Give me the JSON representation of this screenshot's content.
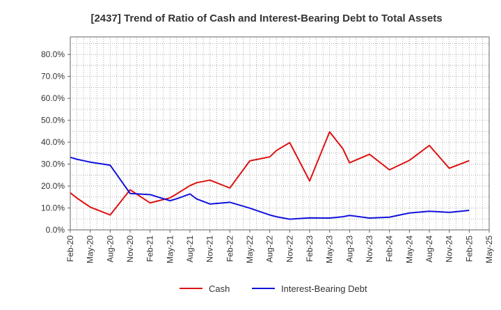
{
  "chart_data": {
    "type": "line",
    "title": "[2437]  Trend of Ratio of Cash and Interest-Bearing Debt to Total Assets",
    "xlabel": "",
    "ylabel": "",
    "ylim": [
      0,
      0.88
    ],
    "y_ticks": [
      "0.0%",
      "10.0%",
      "20.0%",
      "30.0%",
      "40.0%",
      "50.0%",
      "60.0%",
      "70.0%",
      "80.0%"
    ],
    "x_ticks": [
      "Feb-20",
      "May-20",
      "Aug-20",
      "Nov-20",
      "Feb-21",
      "May-21",
      "Aug-21",
      "Nov-21",
      "Feb-22",
      "May-22",
      "Aug-22",
      "Nov-22",
      "Feb-23",
      "May-23",
      "Aug-23",
      "Nov-23",
      "Feb-24",
      "May-24",
      "Aug-24",
      "Nov-24",
      "Feb-25",
      "May-25"
    ],
    "x": [
      "Feb-20",
      "Mar-20",
      "May-20",
      "Aug-20",
      "Nov-20",
      "Feb-21",
      "May-21",
      "Jun-21",
      "Aug-21",
      "Sep-21",
      "Nov-21",
      "Feb-22",
      "May-22",
      "Aug-22",
      "Sep-22",
      "Nov-22",
      "Dec-22",
      "Feb-23",
      "May-23",
      "Jul-23",
      "Aug-23",
      "Nov-23",
      "Feb-24",
      "May-24",
      "Aug-24",
      "Nov-24",
      "Feb-25"
    ],
    "grid": true,
    "legend_position": "bottom",
    "series": [
      {
        "name": "Cash",
        "color": "#dd1111",
        "values": [
          0.169,
          0.145,
          0.104,
          0.068,
          0.183,
          0.123,
          0.146,
          0.164,
          0.202,
          0.215,
          0.227,
          0.191,
          0.315,
          0.333,
          0.362,
          0.398,
          0.34,
          0.223,
          0.447,
          0.37,
          0.306,
          0.345,
          0.274,
          0.317,
          0.385,
          0.281,
          0.316
        ]
      },
      {
        "name": "Interest-Bearing Debt",
        "color": "#1111dd",
        "values": [
          0.331,
          0.322,
          0.309,
          0.295,
          0.166,
          0.161,
          0.133,
          0.142,
          0.164,
          0.141,
          0.118,
          0.126,
          0.099,
          0.068,
          0.06,
          0.049,
          0.051,
          0.055,
          0.054,
          0.06,
          0.066,
          0.054,
          0.058,
          0.077,
          0.085,
          0.08,
          0.089
        ]
      }
    ]
  }
}
